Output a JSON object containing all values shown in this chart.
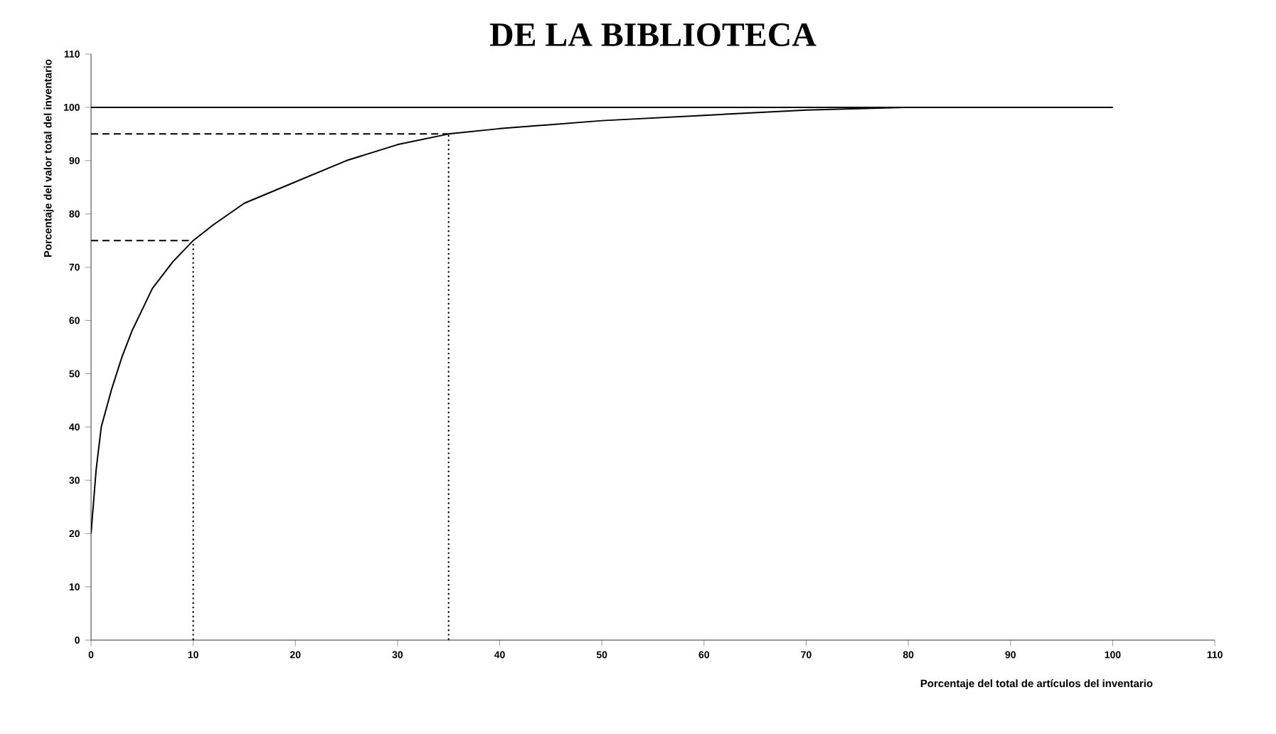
{
  "chart_data": {
    "type": "line",
    "title": "DE LA BIBLIOTECA",
    "xlabel": "Porcentaje del total de artículos del inventario",
    "ylabel": "Porcentaje del valor total del inventario",
    "xlim": [
      0,
      110
    ],
    "ylim": [
      0,
      110
    ],
    "xticks": [
      0,
      10,
      20,
      30,
      40,
      50,
      60,
      70,
      80,
      90,
      100,
      110
    ],
    "yticks": [
      0,
      10,
      20,
      30,
      40,
      50,
      60,
      70,
      80,
      90,
      100,
      110
    ],
    "grid": false,
    "marker": "none",
    "series": [
      {
        "color": "#000000",
        "line_style": "solid",
        "x": [
          0,
          0.5,
          1,
          2,
          3,
          4,
          5,
          6,
          8,
          10,
          12,
          15,
          20,
          25,
          30,
          35,
          40,
          50,
          60,
          70,
          80,
          100
        ],
        "values": [
          20,
          32,
          40,
          47,
          53,
          58,
          62,
          66,
          71,
          75,
          78,
          82,
          86,
          90,
          93,
          95,
          96,
          97.5,
          98.5,
          99.5,
          100,
          100
        ]
      },
      {
        "color": "#000000",
        "line_style": "solid",
        "x": [
          0,
          100
        ],
        "values": [
          100,
          100
        ]
      },
      {
        "color": "#000000",
        "line_style": "dashed",
        "x": [
          0,
          10
        ],
        "values": [
          75,
          75
        ]
      },
      {
        "color": "#000000",
        "line_style": "dotted",
        "x": [
          10,
          10
        ],
        "values": [
          0,
          75
        ]
      },
      {
        "color": "#000000",
        "line_style": "dashed",
        "x": [
          0,
          35
        ],
        "values": [
          95,
          95
        ]
      },
      {
        "color": "#000000",
        "line_style": "dotted",
        "x": [
          35,
          35
        ],
        "values": [
          0,
          95
        ]
      }
    ]
  }
}
